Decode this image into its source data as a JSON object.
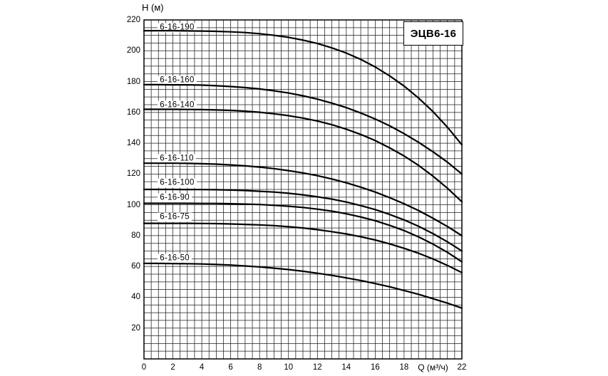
{
  "title_box": "ЭЦВ6-16",
  "colors": {
    "curve": "#000000",
    "grid": "#1f1f1f",
    "border": "#000000"
  },
  "chart_data": {
    "type": "line",
    "title": "ЭЦВ6-16",
    "xlabel": "Q (м³/ч)",
    "ylabel": "H (м)",
    "xlim": [
      0,
      22
    ],
    "ylim": [
      0,
      220
    ],
    "grid": true,
    "x_minor_step": 0.5,
    "y_minor_step": 5,
    "x_tick_values": [
      0,
      2,
      4,
      6,
      8,
      10,
      12,
      14,
      16,
      18,
      22
    ],
    "x_axis_title_q": 20,
    "y_tick_values": [
      20,
      40,
      60,
      80,
      100,
      120,
      140,
      160,
      180,
      200,
      220
    ],
    "x": [
      0,
      1,
      2,
      3,
      4,
      5,
      6,
      7,
      8,
      9,
      10,
      11,
      12,
      13,
      14,
      15,
      16,
      17,
      18,
      19,
      20,
      21,
      22
    ],
    "series": [
      {
        "name": "6-16-190",
        "label_q": 0.95,
        "label_h": 215,
        "values": [
          213,
          213,
          213,
          212.9,
          212.8,
          212.6,
          212.3,
          211.8,
          211.1,
          210,
          208.7,
          206.9,
          204.7,
          201.9,
          198.5,
          194.4,
          189.5,
          183.7,
          177.1,
          169.3,
          160.5,
          150.4,
          139
        ]
      },
      {
        "name": "6-16-160",
        "label_q": 0.95,
        "label_h": 180.5,
        "values": [
          178,
          178,
          177.9,
          177.9,
          177.7,
          177.3,
          176.8,
          176.1,
          175.2,
          174,
          172.6,
          170.8,
          168.6,
          166,
          163.1,
          159.6,
          155.7,
          151.3,
          146.2,
          140.6,
          134.4,
          127.7,
          120
        ]
      },
      {
        "name": "6-16-140",
        "label_q": 0.95,
        "label_h": 164.5,
        "values": [
          162,
          162,
          162,
          161.9,
          161.8,
          161.6,
          161.3,
          160.8,
          160.1,
          159.1,
          157.9,
          156.3,
          154.4,
          152,
          149.1,
          145.7,
          141.7,
          137,
          131.7,
          125.6,
          118.6,
          110.8,
          102
        ]
      },
      {
        "name": "6-16-110",
        "label_q": 0.95,
        "label_h": 130,
        "values": [
          127,
          127,
          127,
          126.9,
          126.7,
          126.4,
          125.9,
          125.3,
          124.5,
          123.5,
          122.2,
          120.7,
          118.9,
          116.8,
          114.3,
          111.5,
          108.3,
          104.7,
          100.7,
          96.3,
          91.3,
          85.9,
          80
        ]
      },
      {
        "name": "6-16-100",
        "label_q": 0.95,
        "label_h": 114,
        "values": [
          110,
          110,
          110,
          109.9,
          109.9,
          109.8,
          109.6,
          109.3,
          108.8,
          108.3,
          107.5,
          106.5,
          105.2,
          103.7,
          101.8,
          99.5,
          96.9,
          93.8,
          90.2,
          86.1,
          81.3,
          76,
          70
        ]
      },
      {
        "name": "6-16-90",
        "label_q": 0.95,
        "label_h": 104.5,
        "values": [
          101,
          101,
          101,
          101,
          100.9,
          100.9,
          100.7,
          100.5,
          100.2,
          99.7,
          99.1,
          98.3,
          97.2,
          95.9,
          94.2,
          92.1,
          89.7,
          86.7,
          83.3,
          79.2,
          74.5,
          69.2,
          63
        ]
      },
      {
        "name": "6-16-75",
        "label_q": 0.95,
        "label_h": 92,
        "values": [
          88,
          88,
          88,
          88,
          87.9,
          87.8,
          87.6,
          87.3,
          87,
          86.5,
          85.8,
          85,
          83.9,
          82.6,
          81.1,
          79.3,
          77.2,
          74.7,
          71.8,
          68.6,
          64.9,
          60.7,
          56
        ]
      },
      {
        "name": "6-16-50",
        "label_q": 0.95,
        "label_h": 65,
        "values": [
          62,
          62,
          61.9,
          61.8,
          61.6,
          61.3,
          60.9,
          60.3,
          59.7,
          58.9,
          58,
          56.9,
          55.6,
          54.2,
          52.6,
          50.9,
          48.9,
          46.8,
          44.4,
          41.9,
          39.1,
          36.2,
          33
        ]
      }
    ]
  }
}
